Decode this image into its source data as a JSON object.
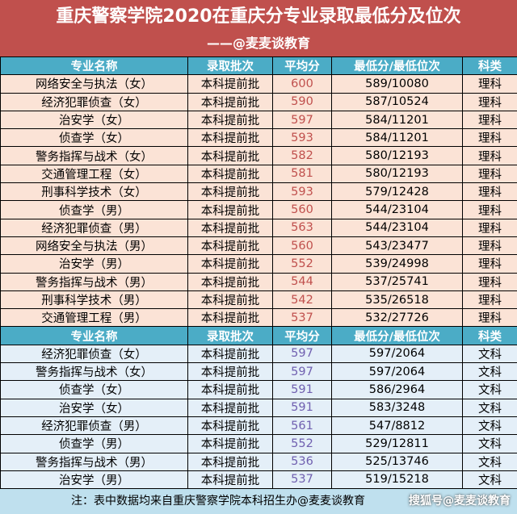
{
  "header": {
    "title": "重庆警察学院2020在重庆分专业录取最低分及位次",
    "subtitle": "——@麦麦谈教育"
  },
  "sections": [
    {
      "columns": [
        "专业名称",
        "录取批次",
        "平均分",
        "最低分/最低位次",
        "科类"
      ],
      "rows": [
        [
          "网络安全与执法（女）",
          "本科提前批",
          600,
          "589/10080",
          "理科"
        ],
        [
          "经济犯罪侦查（女）",
          "本科提前批",
          590,
          "587/10524",
          "理科"
        ],
        [
          "治安学（女）",
          "本科提前批",
          597,
          "584/11201",
          "理科"
        ],
        [
          "侦查学（女）",
          "本科提前批",
          593,
          "584/11201",
          "理科"
        ],
        [
          "警务指挥与战术（女）",
          "本科提前批",
          582,
          "580/12193",
          "理科"
        ],
        [
          "交通管理工程（女）",
          "本科提前批",
          581,
          "580/12193",
          "理科"
        ],
        [
          "刑事科学技术（女）",
          "本科提前批",
          593,
          "579/12428",
          "理科"
        ],
        [
          "侦查学（男）",
          "本科提前批",
          560,
          "544/23104",
          "理科"
        ],
        [
          "经济犯罪侦查（男）",
          "本科提前批",
          563,
          "544/23104",
          "理科"
        ],
        [
          "网络安全与执法（男）",
          "本科提前批",
          560,
          "543/23477",
          "理科"
        ],
        [
          "治安学（男）",
          "本科提前批",
          552,
          "539/24998",
          "理科"
        ],
        [
          "警务指挥与战术（男）",
          "本科提前批",
          544,
          "537/25741",
          "理科"
        ],
        [
          "刑事科学技术（男）",
          "本科提前批",
          542,
          "535/26518",
          "理科"
        ],
        [
          "交通管理工程（男）",
          "本科提前批",
          537,
          "532/27726",
          "理科"
        ]
      ]
    },
    {
      "columns": [
        "专业名称",
        "录取批次",
        "平均分",
        "最低分/最低位次",
        "科类"
      ],
      "rows": [
        [
          "经济犯罪侦查（女）",
          "本科提前批",
          597,
          "597/2064",
          "文科"
        ],
        [
          "警务指挥与战术（女）",
          "本科提前批",
          597,
          "597/2064",
          "文科"
        ],
        [
          "侦查学（女）",
          "本科提前批",
          591,
          "586/2964",
          "文科"
        ],
        [
          "治安学（女）",
          "本科提前批",
          591,
          "583/3248",
          "文科"
        ],
        [
          "经济犯罪侦查（男）",
          "本科提前批",
          561,
          "547/8812",
          "文科"
        ],
        [
          "侦查学（男）",
          "本科提前批",
          552,
          "529/12811",
          "文科"
        ],
        [
          "警务指挥与战术（男）",
          "本科提前批",
          536,
          "525/13746",
          "文科"
        ],
        [
          "治安学（男）",
          "本科提前批",
          537,
          "519/15218",
          "文科"
        ]
      ]
    }
  ],
  "footer": {
    "note": "注：表中数据均来自重庆警察学院本科招生办@麦麦谈教育",
    "watermark": "搜狐号@麦麦谈教育"
  }
}
